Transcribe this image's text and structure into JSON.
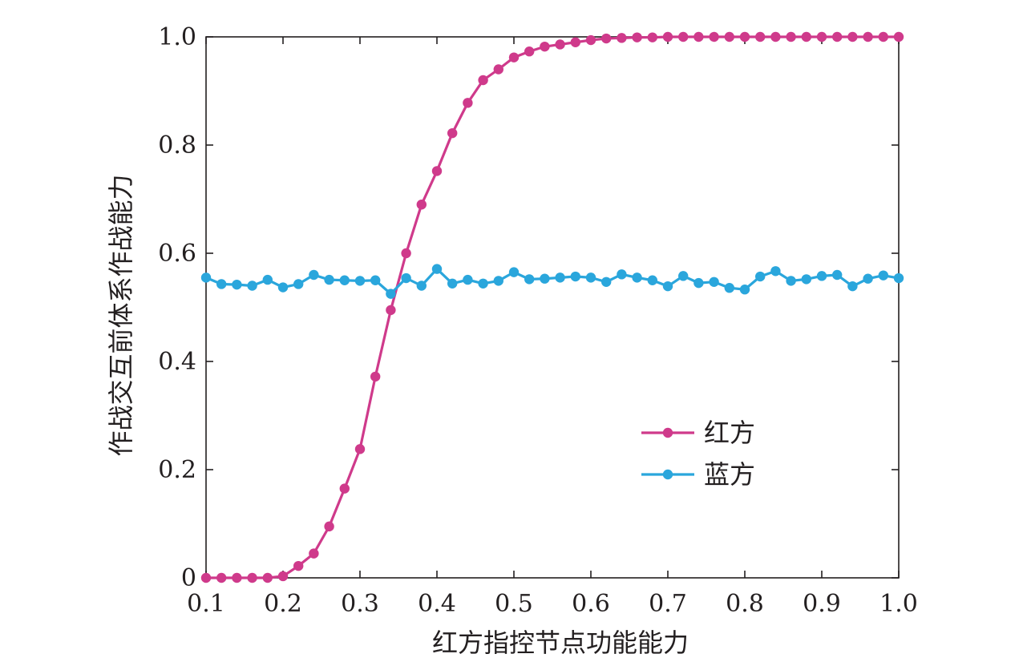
{
  "chart_data": {
    "type": "line",
    "xlabel": "红方指控节点功能能力",
    "ylabel": "作战交互前体系作战能力",
    "xlim": [
      0.1,
      1.0
    ],
    "ylim": [
      0,
      1.0
    ],
    "x_ticks": [
      "0.1",
      "0.2",
      "0.3",
      "0.4",
      "0.5",
      "0.6",
      "0.7",
      "0.8",
      "0.9",
      "1.0"
    ],
    "y_ticks": [
      "0",
      "0.2",
      "0.4",
      "0.6",
      "0.8",
      "1.0"
    ],
    "grid": false,
    "legend_position": "center-right",
    "x": [
      0.1,
      0.12,
      0.14,
      0.16,
      0.18,
      0.2,
      0.22,
      0.24,
      0.26,
      0.28,
      0.3,
      0.32,
      0.34,
      0.36,
      0.38,
      0.4,
      0.42,
      0.44,
      0.46,
      0.48,
      0.5,
      0.52,
      0.54,
      0.56,
      0.58,
      0.6,
      0.62,
      0.64,
      0.66,
      0.68,
      0.7,
      0.72,
      0.74,
      0.76,
      0.78,
      0.8,
      0.82,
      0.84,
      0.86,
      0.88,
      0.9,
      0.92,
      0.94,
      0.96,
      0.98,
      1.0
    ],
    "series": [
      {
        "name": "红方",
        "color": "#cf3a8b",
        "values": [
          0.0,
          0.0,
          0.0,
          0.0,
          0.0,
          0.003,
          0.022,
          0.045,
          0.095,
          0.165,
          0.238,
          0.372,
          0.495,
          0.6,
          0.69,
          0.752,
          0.822,
          0.878,
          0.92,
          0.94,
          0.962,
          0.973,
          0.982,
          0.986,
          0.99,
          0.994,
          0.997,
          0.998,
          0.999,
          0.999,
          1.0,
          1.0,
          1.0,
          1.0,
          1.0,
          1.0,
          1.0,
          1.0,
          1.0,
          1.0,
          1.0,
          1.0,
          1.0,
          1.0,
          1.0,
          1.0
        ]
      },
      {
        "name": "蓝方",
        "color": "#2aa6dc",
        "values": [
          0.555,
          0.543,
          0.542,
          0.54,
          0.551,
          0.537,
          0.543,
          0.56,
          0.551,
          0.55,
          0.549,
          0.55,
          0.525,
          0.554,
          0.54,
          0.571,
          0.544,
          0.551,
          0.544,
          0.549,
          0.565,
          0.552,
          0.553,
          0.555,
          0.557,
          0.555,
          0.547,
          0.561,
          0.555,
          0.55,
          0.539,
          0.558,
          0.545,
          0.547,
          0.536,
          0.533,
          0.557,
          0.567,
          0.549,
          0.552,
          0.558,
          0.56,
          0.539,
          0.553,
          0.559,
          0.554
        ]
      }
    ]
  }
}
